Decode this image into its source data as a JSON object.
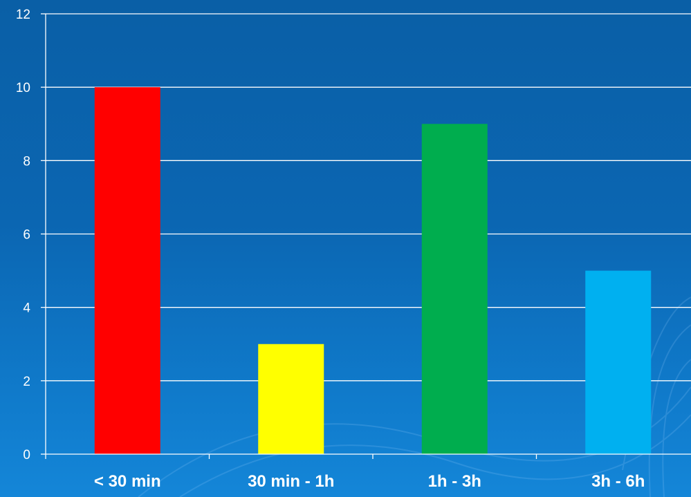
{
  "chart_data": {
    "type": "bar",
    "title": "",
    "xlabel": "",
    "ylabel": "",
    "categories": [
      "< 30 min",
      "30 min - 1h",
      "1h - 3h",
      "3h - 6h"
    ],
    "values": [
      10,
      3,
      9,
      5
    ],
    "bar_colors": [
      "#ff0000",
      "#ffff00",
      "#00ad4e",
      "#00b0f0"
    ],
    "ylim": [
      0,
      12
    ],
    "yticks": [
      0,
      2,
      4,
      6,
      8,
      10,
      12
    ],
    "grid": true,
    "legend": "none",
    "colors": {
      "background_top": "#0a5fa6",
      "background_bottom": "#1486d8",
      "axis": "#ffffff",
      "text": "#ffffff"
    }
  }
}
